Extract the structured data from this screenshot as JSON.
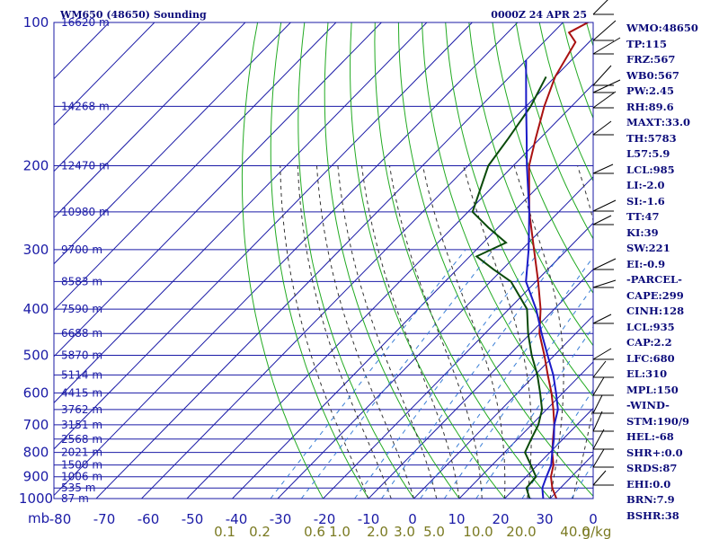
{
  "header": {
    "title": "WM650 (48650) Sounding",
    "datetime": "0000Z 24 APR 25"
  },
  "chart_data": {
    "type": "skew-t",
    "xlabel_corner": "mb",
    "pressure_ticks": [
      100,
      200,
      300,
      400,
      500,
      600,
      700,
      800,
      900,
      1000
    ],
    "temperature_ticks": [
      -80,
      -70,
      -60,
      -50,
      -40,
      -30,
      -20,
      -10,
      0,
      10,
      20,
      30,
      0
    ],
    "mixing_ratio_labels": [
      "0.1",
      "0.2",
      "0.6",
      "1.0",
      "2.0",
      "3.0",
      "5.0",
      "10.0",
      "20.0",
      "40.0",
      "g/kg"
    ],
    "height_labels": [
      {
        "p": 100,
        "h": "16620 m"
      },
      {
        "p": 150,
        "h": "14268 m"
      },
      {
        "p": 200,
        "h": "12470 m"
      },
      {
        "p": 250,
        "h": "10980 m"
      },
      {
        "p": 300,
        "h": "9700 m"
      },
      {
        "p": 350,
        "h": "8583 m"
      },
      {
        "p": 400,
        "h": "7590 m"
      },
      {
        "p": 450,
        "h": "6688 m"
      },
      {
        "p": 500,
        "h": "5870 m"
      },
      {
        "p": 550,
        "h": "5114 m"
      },
      {
        "p": 600,
        "h": "4415 m"
      },
      {
        "p": 650,
        "h": "3762 m"
      },
      {
        "p": 700,
        "h": "3151 m"
      },
      {
        "p": 750,
        "h": "2568 m"
      },
      {
        "p": 800,
        "h": "2021 m"
      },
      {
        "p": 850,
        "h": "1500 m"
      },
      {
        "p": 900,
        "h": "1006 m"
      },
      {
        "p": 950,
        "h": "535 m"
      },
      {
        "p": 1000,
        "h": "87 m"
      }
    ],
    "series": [
      {
        "color": "#aa1111",
        "points": [
          [
            100,
            -74.5
          ],
          [
            105,
            -76.5
          ],
          [
            110,
            -73
          ],
          [
            130,
            -70
          ],
          [
            150,
            -66
          ],
          [
            175,
            -61
          ],
          [
            200,
            -56.5
          ],
          [
            250,
            -46.5
          ],
          [
            300,
            -37.3
          ],
          [
            350,
            -29.5
          ],
          [
            400,
            -23
          ],
          [
            450,
            -18
          ],
          [
            500,
            -12.2
          ],
          [
            550,
            -7.2
          ],
          [
            600,
            -2.5
          ],
          [
            650,
            1.5
          ],
          [
            700,
            5
          ],
          [
            750,
            7.8
          ],
          [
            800,
            10.5
          ],
          [
            850,
            13.5
          ],
          [
            900,
            15.5
          ],
          [
            950,
            18.2
          ],
          [
            1000,
            21.4
          ],
          [
            1008,
            22.3
          ]
        ]
      },
      {
        "color": "#0a4a0a",
        "points": [
          [
            130,
            -72
          ],
          [
            150,
            -69
          ],
          [
            175,
            -67
          ],
          [
            200,
            -65.5
          ],
          [
            250,
            -59
          ],
          [
            270,
            -52
          ],
          [
            290,
            -45
          ],
          [
            310,
            -48.5
          ],
          [
            330,
            -42
          ],
          [
            350,
            -35.5
          ],
          [
            400,
            -26
          ],
          [
            450,
            -20.5
          ],
          [
            500,
            -15
          ],
          [
            550,
            -9.5
          ],
          [
            600,
            -5
          ],
          [
            650,
            -1
          ],
          [
            700,
            1.5
          ],
          [
            750,
            3
          ],
          [
            800,
            4.5
          ],
          [
            850,
            8.5
          ],
          [
            900,
            12.2
          ],
          [
            950,
            12.5
          ],
          [
            1000,
            15.5
          ],
          [
            1008,
            17.8
          ]
        ]
      },
      {
        "color": "#1b1bc8",
        "points": [
          [
            120,
            -80
          ],
          [
            150,
            -70
          ],
          [
            175,
            -63
          ],
          [
            200,
            -57
          ],
          [
            250,
            -46.5
          ],
          [
            300,
            -38.5
          ],
          [
            350,
            -32.2
          ],
          [
            400,
            -24
          ],
          [
            450,
            -17.5
          ],
          [
            500,
            -11.5
          ],
          [
            550,
            -6
          ],
          [
            600,
            -1.5
          ],
          [
            650,
            2.5
          ],
          [
            700,
            5
          ],
          [
            750,
            8
          ],
          [
            800,
            10.5
          ],
          [
            850,
            13
          ],
          [
            900,
            14.5
          ],
          [
            950,
            16
          ],
          [
            1000,
            18.5
          ],
          [
            1008,
            19.7
          ]
        ]
      }
    ]
  },
  "indices": [
    "WMO:48650",
    "TP:115",
    "FRZ:567",
    "WB0:567",
    "PW:2.45",
    "RH:89.6",
    "MAXT:33.0",
    "TH:5783",
    "L57:5.9",
    "LCL:985",
    "LI:-2.0",
    "SI:-1.6",
    "TT:47",
    "KI:39",
    "SW:221",
    "EI:-0.9",
    "-PARCEL-",
    "CAPE:299",
    "CINH:128",
    "LCL:935",
    "CAP:2.2",
    "LFC:680",
    "EL:310",
    "MPL:150",
    "-WIND-",
    "STM:190/9",
    "HEL:-68",
    "SHR+:0.0",
    "SRDS:87",
    "EHI:0.0",
    "BRN:7.9",
    "BSHR:38"
  ],
  "colors": {
    "frame": "#1a1aa6",
    "isotherm": "#1a1aa6",
    "dry_adiabat": "#22aa22",
    "moist_adiabat": "#333333",
    "mixing_ratio": "#3a7fd6",
    "mixing_label": "#7a7a22"
  }
}
